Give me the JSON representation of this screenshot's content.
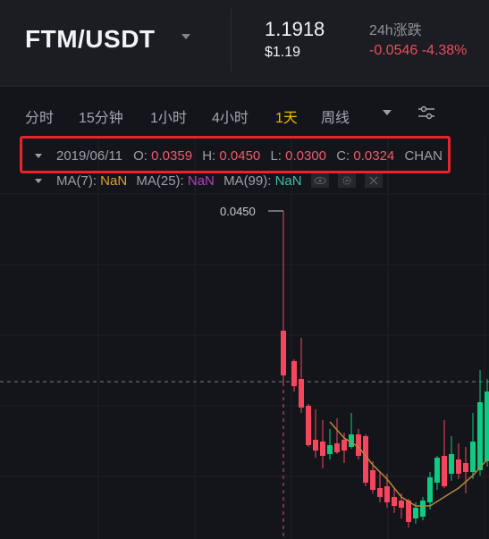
{
  "header": {
    "pair": "FTM/USDT",
    "price": "1.1918",
    "price_usd": "$1.19",
    "change_label": "24h涨跌",
    "change_values": "-0.0546 -4.38%"
  },
  "toolbar": {
    "timeframes": [
      "分时",
      "15分钟",
      "1小时",
      "4小时",
      "1天",
      "周线"
    ],
    "active_timeframe": "1天"
  },
  "ohlc": {
    "date": "2019/06/11",
    "o_label": "O:",
    "o": "0.0359",
    "h_label": "H:",
    "h": "0.0450",
    "l_label": "L:",
    "l": "0.0300",
    "c_label": "C:",
    "c": "0.0324",
    "extra": "CHAN"
  },
  "ma": {
    "ma7_label": "MA(7):",
    "ma7": "NaN",
    "ma25_label": "MA(25):",
    "ma25": "NaN",
    "ma99_label": "MA(99):",
    "ma99": "NaN"
  },
  "chart": {
    "crosshair_price": "0.0450",
    "colors": {
      "up": "#0ecb81",
      "down": "#f6465d",
      "ma": "#b58a3a"
    }
  }
}
